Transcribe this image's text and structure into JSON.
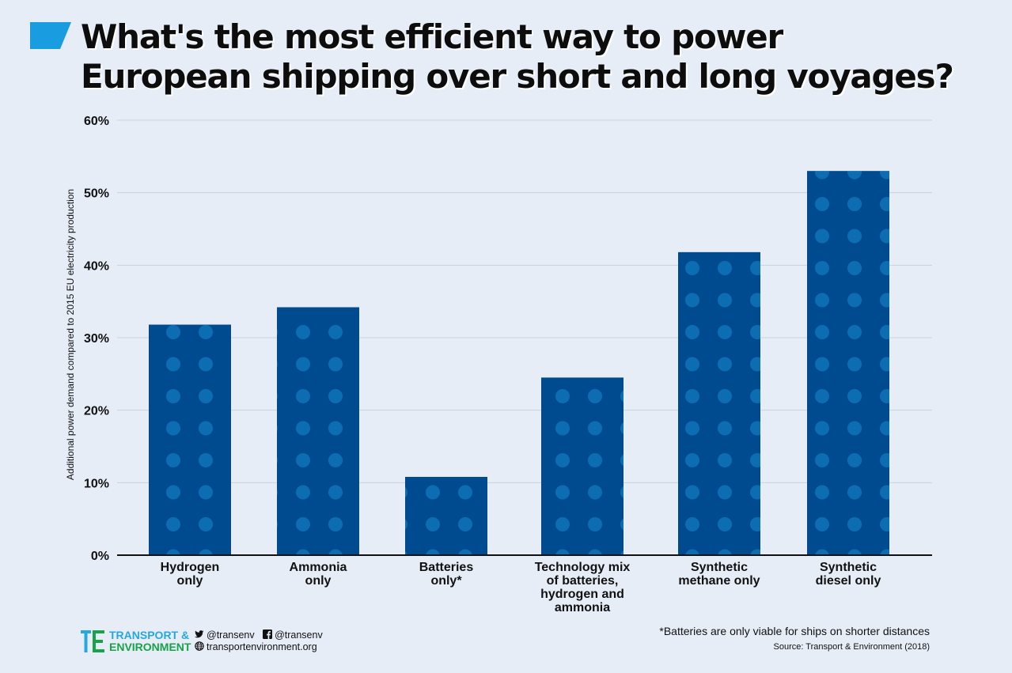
{
  "header": {
    "title_line1": "What's the most efficient way to power",
    "title_line2": "European shipping over short and long voyages?"
  },
  "chart_data": {
    "type": "bar",
    "categories": [
      [
        "Hydrogen",
        "only"
      ],
      [
        "Ammonia",
        "only"
      ],
      [
        "Batteries",
        "only*"
      ],
      [
        "Technology mix",
        "of batteries,",
        "hydrogen and",
        "ammonia"
      ],
      [
        "Synthetic",
        "methane only"
      ],
      [
        "Synthetic",
        "diesel only"
      ]
    ],
    "values": [
      31.8,
      34.2,
      10.8,
      24.5,
      41.8,
      53
    ],
    "ylabel": "Additional power demand compared to 2015 EU electricity production",
    "ylim": [
      0,
      60
    ],
    "yticks": [
      0,
      10,
      20,
      30,
      40,
      50,
      60
    ],
    "ytick_labels": [
      "0%",
      "10%",
      "20%",
      "30%",
      "40%",
      "50%",
      "60%"
    ],
    "grid": true,
    "bar_color": "#004a8f",
    "dot_color": "#1a90d6"
  },
  "footer": {
    "brand_line1": "TRANSPORT &",
    "brand_line2": "ENVIRONMENT",
    "twitter": "@transenv",
    "facebook": "@transenv",
    "website": "transportenvironment.org",
    "footnote": "*Batteries are only viable for ships on shorter distances",
    "source": "Source: Transport & Environment (2018)"
  },
  "colors": {
    "background": "#e6edf7",
    "accent": "#1a9de0",
    "brand_blue": "#27a7df",
    "brand_green": "#18a24a"
  }
}
